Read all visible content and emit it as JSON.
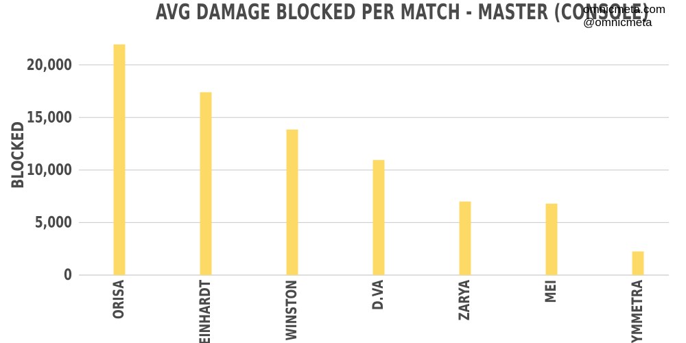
{
  "watermark": {
    "line1": "omnicmeta.com",
    "line2": "@omnicmeta"
  },
  "chart_data": {
    "type": "bar",
    "title": "AVG DAMAGE BLOCKED PER MATCH - MASTER (CONSOLE)",
    "xlabel": "",
    "ylabel": "BLOCKED",
    "categories": [
      "ORISA",
      "REINHARDT",
      "WINSTON",
      "D.VA",
      "ZARYA",
      "MEI",
      "SYMMETRA"
    ],
    "values": [
      21950,
      17400,
      13850,
      10950,
      7000,
      6800,
      2250
    ],
    "ylim": [
      0,
      22000
    ],
    "yticks": [
      0,
      5000,
      10000,
      15000,
      20000
    ],
    "ytick_labels": [
      "0",
      "5,000",
      "10,000",
      "15,000",
      "20,000"
    ],
    "grid": true,
    "bar_color": "#fdd966",
    "grid_color": "#c8c8c8",
    "text_color": "#4a4a4a"
  }
}
